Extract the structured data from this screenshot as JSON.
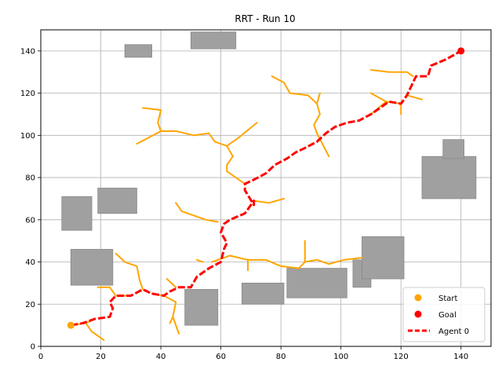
{
  "chart_data": {
    "type": "line",
    "title": "RRT - Run 10",
    "xlabel": "",
    "ylabel": "",
    "xlim": [
      0,
      150
    ],
    "ylim": [
      0,
      150
    ],
    "xticks": [
      0,
      20,
      40,
      60,
      80,
      100,
      120,
      140
    ],
    "yticks": [
      0,
      20,
      40,
      60,
      80,
      100,
      120,
      140
    ],
    "grid": true,
    "legend_position": "bottom-right",
    "colors": {
      "tree": "#FFA500",
      "start": "#FFA500",
      "goal": "#FF0000",
      "path": "#FF0000",
      "obstacle": "#A0A0A0"
    },
    "obstacles": [
      {
        "x": 28,
        "y": 137,
        "w": 9,
        "h": 6
      },
      {
        "x": 50,
        "y": 141,
        "w": 15,
        "h": 8
      },
      {
        "x": 7,
        "y": 55,
        "w": 10,
        "h": 16
      },
      {
        "x": 19,
        "y": 63,
        "w": 13,
        "h": 12
      },
      {
        "x": 10,
        "y": 29,
        "w": 14,
        "h": 17
      },
      {
        "x": 48,
        "y": 10,
        "w": 11,
        "h": 17
      },
      {
        "x": 67,
        "y": 20,
        "w": 14,
        "h": 10
      },
      {
        "x": 82,
        "y": 23,
        "w": 20,
        "h": 14
      },
      {
        "x": 104,
        "y": 28,
        "w": 6,
        "h": 13
      },
      {
        "x": 107,
        "y": 32,
        "w": 14,
        "h": 20
      },
      {
        "x": 127,
        "y": 70,
        "w": 18,
        "h": 20
      },
      {
        "x": 134,
        "y": 89,
        "w": 7,
        "h": 9
      }
    ],
    "tree_branches": [
      [
        [
          10,
          10
        ],
        [
          15,
          11
        ],
        [
          17,
          7
        ],
        [
          21,
          3
        ]
      ],
      [
        [
          15,
          11
        ],
        [
          18,
          13
        ]
      ],
      [
        [
          23,
          28
        ],
        [
          19,
          28
        ]
      ],
      [
        [
          23,
          28
        ],
        [
          25,
          24
        ],
        [
          30,
          24
        ]
      ],
      [
        [
          25,
          44
        ],
        [
          28,
          40
        ],
        [
          32,
          38
        ],
        [
          33,
          31
        ],
        [
          34,
          27
        ]
      ],
      [
        [
          37,
          25
        ],
        [
          41,
          24
        ],
        [
          45,
          21
        ],
        [
          44,
          14
        ],
        [
          46,
          6
        ]
      ],
      [
        [
          44,
          14
        ],
        [
          43,
          11
        ]
      ],
      [
        [
          45,
          28
        ],
        [
          42,
          32
        ]
      ],
      [
        [
          54,
          40
        ],
        [
          52,
          41
        ]
      ],
      [
        [
          57,
          40
        ],
        [
          63,
          43
        ],
        [
          69,
          41
        ],
        [
          75,
          41
        ],
        [
          80,
          38
        ],
        [
          86,
          37
        ]
      ],
      [
        [
          69,
          41
        ],
        [
          69,
          36
        ]
      ],
      [
        [
          86,
          37
        ],
        [
          88,
          40
        ],
        [
          92,
          41
        ],
        [
          96,
          39
        ],
        [
          101,
          41
        ],
        [
          107,
          42
        ]
      ],
      [
        [
          88,
          40
        ],
        [
          88,
          50
        ]
      ],
      [
        [
          59,
          59
        ],
        [
          55,
          60
        ],
        [
          47,
          64
        ],
        [
          45,
          68
        ]
      ],
      [
        [
          71,
          69
        ],
        [
          76,
          68
        ],
        [
          81,
          70
        ]
      ],
      [
        [
          68,
          77
        ],
        [
          65,
          80
        ],
        [
          62,
          83
        ],
        [
          62,
          86
        ],
        [
          64,
          90
        ],
        [
          62,
          95
        ]
      ],
      [
        [
          62,
          95
        ],
        [
          58,
          97
        ],
        [
          56,
          101
        ],
        [
          51,
          100
        ],
        [
          45,
          102
        ],
        [
          40,
          102
        ],
        [
          32,
          96
        ]
      ],
      [
        [
          40,
          102
        ],
        [
          39,
          106
        ],
        [
          40,
          112
        ],
        [
          34,
          113
        ]
      ],
      [
        [
          62,
          95
        ],
        [
          66,
          99
        ],
        [
          72,
          106
        ]
      ],
      [
        [
          92,
          101
        ],
        [
          96,
          90
        ]
      ],
      [
        [
          92,
          101
        ],
        [
          91,
          105
        ],
        [
          93,
          110
        ],
        [
          92,
          115
        ],
        [
          89,
          119
        ],
        [
          83,
          120
        ],
        [
          81,
          125
        ],
        [
          77,
          128
        ]
      ],
      [
        [
          92,
          115
        ],
        [
          93,
          120
        ]
      ],
      [
        [
          110,
          110
        ],
        [
          115,
          116
        ],
        [
          120,
          115
        ],
        [
          120,
          110
        ]
      ],
      [
        [
          115,
          116
        ],
        [
          110,
          120
        ]
      ],
      [
        [
          122,
          119
        ],
        [
          127,
          117
        ]
      ],
      [
        [
          124,
          128
        ],
        [
          122,
          130
        ],
        [
          116,
          130
        ],
        [
          110,
          131
        ]
      ]
    ],
    "path": [
      [
        10,
        10
      ],
      [
        14,
        11
      ],
      [
        18,
        13
      ],
      [
        23,
        14
      ],
      [
        24,
        18
      ],
      [
        23,
        21
      ],
      [
        25,
        24
      ],
      [
        30,
        24
      ],
      [
        34,
        27
      ],
      [
        37,
        25
      ],
      [
        41,
        24
      ],
      [
        43,
        26
      ],
      [
        46,
        28
      ],
      [
        50,
        28
      ],
      [
        52,
        33
      ],
      [
        56,
        37
      ],
      [
        60,
        40
      ],
      [
        61,
        46
      ],
      [
        62,
        49
      ],
      [
        60,
        54
      ],
      [
        61,
        58
      ],
      [
        63,
        60
      ],
      [
        68,
        63
      ],
      [
        71,
        69
      ],
      [
        71,
        67
      ],
      [
        68,
        74
      ],
      [
        68,
        77
      ],
      [
        71,
        79
      ],
      [
        75,
        82
      ],
      [
        78,
        86
      ],
      [
        82,
        89
      ],
      [
        85,
        92
      ],
      [
        88,
        94
      ],
      [
        92,
        97
      ],
      [
        95,
        101
      ],
      [
        98,
        104
      ],
      [
        102,
        106
      ],
      [
        106,
        107
      ],
      [
        110,
        110
      ],
      [
        113,
        113
      ],
      [
        116,
        116
      ],
      [
        120,
        115
      ],
      [
        122,
        119
      ],
      [
        124,
        125
      ],
      [
        125,
        128
      ],
      [
        129,
        128
      ],
      [
        130,
        133
      ],
      [
        135,
        136
      ],
      [
        140,
        140
      ]
    ],
    "start": [
      10,
      10
    ],
    "goal": [
      140,
      140
    ],
    "legend": [
      {
        "label": "Start",
        "kind": "start-marker"
      },
      {
        "label": "Goal",
        "kind": "goal-marker"
      },
      {
        "label": "Agent 0",
        "kind": "path-line"
      }
    ]
  }
}
